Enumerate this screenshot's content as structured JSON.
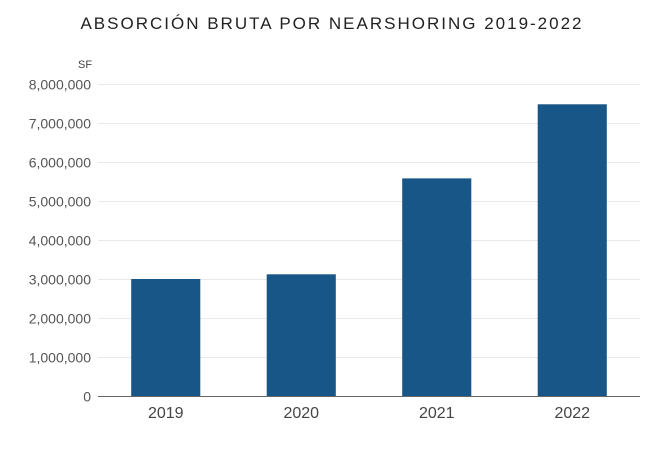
{
  "chart_data": {
    "type": "bar",
    "title": "ABSORCIÓN BRUTA POR NEARSHORING 2019-2022",
    "ylabel": "SF",
    "xlabel": "",
    "categories": [
      "2019",
      "2020",
      "2021",
      "2022"
    ],
    "values": [
      3000000,
      3120000,
      5580000,
      7480000
    ],
    "ylim": [
      0,
      8000000
    ],
    "yticks": [
      0,
      1000000,
      2000000,
      3000000,
      4000000,
      5000000,
      6000000,
      7000000,
      8000000
    ],
    "ytick_labels": [
      "0",
      "1,000,000",
      "2,000,000",
      "3,000,000",
      "4,000,000",
      "5,000,000",
      "6,000,000",
      "7,000,000",
      "8,000,000"
    ],
    "grid": true,
    "bar_color": "#175687"
  }
}
